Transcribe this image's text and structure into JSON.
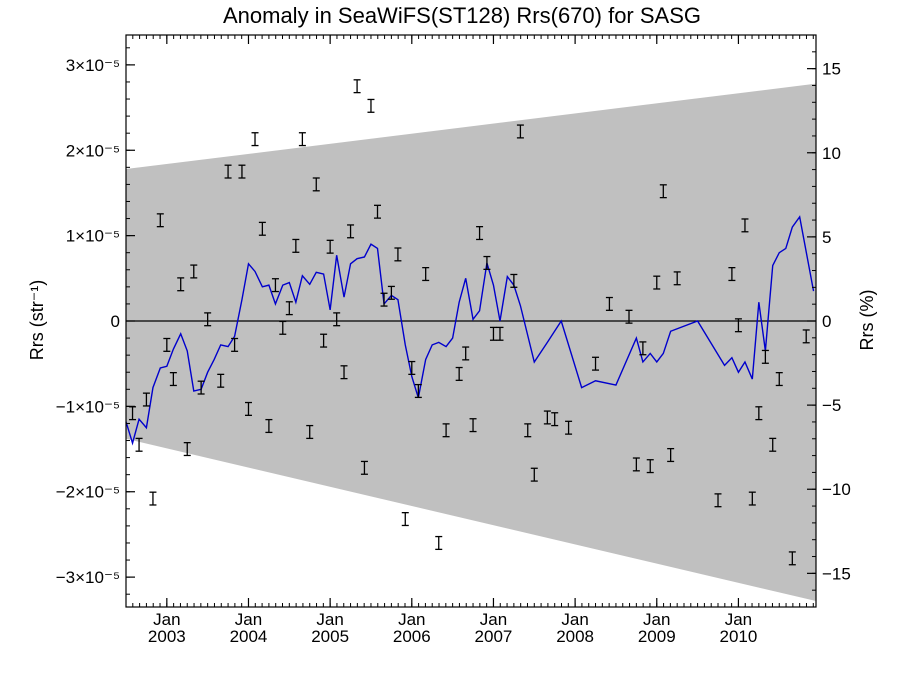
{
  "chart_data": {
    "type": "line",
    "title": "Anomaly in SeaWiFS(ST128) Rrs(670) for SASG",
    "ylabel_left": "Rrs (str⁻¹)",
    "ylabel_right": "Rrs (%)",
    "xlim": [
      2002.5,
      2010.95
    ],
    "ylim_left": [
      -3.35e-05,
      3.35e-05
    ],
    "ylim_right": [
      -17,
      17
    ],
    "y_left_ticks": [
      {
        "value": 3e-05,
        "label": "3×10⁻⁵"
      },
      {
        "value": 2e-05,
        "label": "2×10⁻⁵"
      },
      {
        "value": 1e-05,
        "label": "1×10⁻⁵"
      },
      {
        "value": 0,
        "label": "0"
      },
      {
        "value": -1e-05,
        "label": "−1×10⁻⁵"
      },
      {
        "value": -2e-05,
        "label": "−2×10⁻⁵"
      },
      {
        "value": -3e-05,
        "label": "−3×10⁻⁵"
      }
    ],
    "y_right_ticks": [
      {
        "value": 15,
        "label": "15"
      },
      {
        "value": 10,
        "label": "10"
      },
      {
        "value": 5,
        "label": "5"
      },
      {
        "value": 0,
        "label": "0"
      },
      {
        "value": -5,
        "label": "−5"
      },
      {
        "value": -10,
        "label": "−10"
      },
      {
        "value": -15,
        "label": "−15"
      }
    ],
    "x_ticks": [
      {
        "value": 2003.0,
        "month": "Jan",
        "year": "2003"
      },
      {
        "value": 2004.0,
        "month": "Jan",
        "year": "2004"
      },
      {
        "value": 2005.0,
        "month": "Jan",
        "year": "2005"
      },
      {
        "value": 2006.0,
        "month": "Jan",
        "year": "2006"
      },
      {
        "value": 2007.0,
        "month": "Jan",
        "year": "2007"
      },
      {
        "value": 2008.0,
        "month": "Jan",
        "year": "2008"
      },
      {
        "value": 2009.0,
        "month": "Jan",
        "year": "2009"
      },
      {
        "value": 2010.0,
        "month": "Jan",
        "year": "2010"
      }
    ],
    "envelope": {
      "color": "#c0c0c0",
      "upper": [
        [
          2002.5,
          1.78e-05
        ],
        [
          2010.95,
          2.78e-05
        ]
      ],
      "lower": [
        [
          2002.5,
          -1.38e-05
        ],
        [
          2010.95,
          -3.28e-05
        ]
      ]
    },
    "zero_line": 0,
    "line_series": {
      "color": "#0000cc",
      "points": [
        [
          2002.5,
          -1.18e-05
        ],
        [
          2002.58,
          -1.43e-05
        ],
        [
          2002.66,
          -1.15e-05
        ],
        [
          2002.75,
          -1.25e-05
        ],
        [
          2002.83,
          -7.8e-06
        ],
        [
          2002.92,
          -5.5e-06
        ],
        [
          2003.0,
          -5.3e-06
        ],
        [
          2003.08,
          -3.3e-06
        ],
        [
          2003.17,
          -1.5e-06
        ],
        [
          2003.25,
          -3.5e-06
        ],
        [
          2003.33,
          -8.2e-06
        ],
        [
          2003.42,
          -8e-06
        ],
        [
          2003.5,
          -6e-06
        ],
        [
          2003.58,
          -4.5e-06
        ],
        [
          2003.66,
          -2.8e-06
        ],
        [
          2003.75,
          -3e-06
        ],
        [
          2003.83,
          -1.8e-06
        ],
        [
          2003.92,
          2.5e-06
        ],
        [
          2004.0,
          6.7e-06
        ],
        [
          2004.08,
          5.8e-06
        ],
        [
          2004.17,
          4e-06
        ],
        [
          2004.25,
          4.2e-06
        ],
        [
          2004.33,
          2e-06
        ],
        [
          2004.42,
          4.2e-06
        ],
        [
          2004.5,
          4.5e-06
        ],
        [
          2004.58,
          2.2e-06
        ],
        [
          2004.66,
          5.3e-06
        ],
        [
          2004.75,
          4.3e-06
        ],
        [
          2004.83,
          5.7e-06
        ],
        [
          2004.92,
          5.5e-06
        ],
        [
          2005.0,
          1.3e-06
        ],
        [
          2005.08,
          7.7e-06
        ],
        [
          2005.17,
          2.8e-06
        ],
        [
          2005.25,
          6.7e-06
        ],
        [
          2005.33,
          7.3e-06
        ],
        [
          2005.42,
          7.5e-06
        ],
        [
          2005.5,
          9e-06
        ],
        [
          2005.58,
          8.5e-06
        ],
        [
          2005.66,
          2e-06
        ],
        [
          2005.75,
          3e-06
        ],
        [
          2005.83,
          2.5e-06
        ],
        [
          2005.92,
          -2.8e-06
        ],
        [
          2006.0,
          -6.5e-06
        ],
        [
          2006.08,
          -9e-06
        ],
        [
          2006.17,
          -4.5e-06
        ],
        [
          2006.25,
          -2.8e-06
        ],
        [
          2006.33,
          -2.5e-06
        ],
        [
          2006.42,
          -3e-06
        ],
        [
          2006.5,
          -2e-06
        ],
        [
          2006.58,
          2.2e-06
        ],
        [
          2006.66,
          5e-06
        ],
        [
          2006.75,
          2e-07
        ],
        [
          2006.83,
          1.2e-06
        ],
        [
          2006.92,
          6.8e-06
        ],
        [
          2007.0,
          4.2e-06
        ],
        [
          2007.08,
          0.0
        ],
        [
          2007.17,
          5.2e-06
        ],
        [
          2007.25,
          4.2e-06
        ],
        [
          2007.33,
          1.8e-06
        ],
        [
          2007.5,
          -4.8e-06
        ],
        [
          2007.66,
          -2.5e-06
        ],
        [
          2007.83,
          0.0
        ],
        [
          2008.08,
          -7.8e-06
        ],
        [
          2008.25,
          -7e-06
        ],
        [
          2008.5,
          -7.5e-06
        ],
        [
          2008.75,
          -2e-06
        ],
        [
          2008.83,
          -4.8e-06
        ],
        [
          2008.92,
          -3.8e-06
        ],
        [
          2009.0,
          -4.8e-06
        ],
        [
          2009.08,
          -3.8e-06
        ],
        [
          2009.17,
          -1.2e-06
        ],
        [
          2009.5,
          0.0
        ],
        [
          2009.83,
          -5.2e-06
        ],
        [
          2009.92,
          -4.3e-06
        ],
        [
          2010.0,
          -6e-06
        ],
        [
          2010.08,
          -4.8e-06
        ],
        [
          2010.17,
          -6.8e-06
        ],
        [
          2010.25,
          2.2e-06
        ],
        [
          2010.33,
          -3.5e-06
        ],
        [
          2010.42,
          6.5e-06
        ],
        [
          2010.5,
          8e-06
        ],
        [
          2010.58,
          8.5e-06
        ],
        [
          2010.66,
          1.1e-05
        ],
        [
          2010.75,
          1.22e-05
        ],
        [
          2010.92,
          3.5e-06
        ]
      ]
    },
    "error_bars": {
      "color": "#000000",
      "halfwidth": 7.5e-07,
      "points": [
        [
          2002.58,
          -1.08e-05
        ],
        [
          2002.66,
          -1.45e-05
        ],
        [
          2002.75,
          -9.2e-06
        ],
        [
          2002.83,
          -2.08e-05
        ],
        [
          2002.92,
          1.18e-05
        ],
        [
          2003.0,
          -2.8e-06
        ],
        [
          2003.08,
          -6.8e-06
        ],
        [
          2003.17,
          4.3e-06
        ],
        [
          2003.25,
          -1.5e-05
        ],
        [
          2003.33,
          5.8e-06
        ],
        [
          2003.42,
          -7.8e-06
        ],
        [
          2003.5,
          2e-07
        ],
        [
          2003.66,
          -7e-06
        ],
        [
          2003.75,
          1.75e-05
        ],
        [
          2003.83,
          -2.8e-06
        ],
        [
          2003.92,
          1.75e-05
        ],
        [
          2004.0,
          -1.03e-05
        ],
        [
          2004.08,
          2.13e-05
        ],
        [
          2004.17,
          1.08e-05
        ],
        [
          2004.25,
          -1.23e-05
        ],
        [
          2004.33,
          4.2e-06
        ],
        [
          2004.42,
          -8e-07
        ],
        [
          2004.5,
          1.5e-06
        ],
        [
          2004.58,
          8.8e-06
        ],
        [
          2004.66,
          2.13e-05
        ],
        [
          2004.75,
          -1.3e-05
        ],
        [
          2004.83,
          1.6e-05
        ],
        [
          2004.92,
          -2.3e-06
        ],
        [
          2005.0,
          8.7e-06
        ],
        [
          2005.08,
          2e-07
        ],
        [
          2005.17,
          -6e-06
        ],
        [
          2005.25,
          1.05e-05
        ],
        [
          2005.33,
          2.75e-05
        ],
        [
          2005.42,
          -1.72e-05
        ],
        [
          2005.5,
          2.52e-05
        ],
        [
          2005.58,
          1.28e-05
        ],
        [
          2005.66,
          2.5e-06
        ],
        [
          2005.75,
          3.3e-06
        ],
        [
          2005.83,
          7.8e-06
        ],
        [
          2005.92,
          -2.32e-05
        ],
        [
          2006.0,
          -5.5e-06
        ],
        [
          2006.08,
          -8.2e-06
        ],
        [
          2006.17,
          5.5e-06
        ],
        [
          2006.33,
          -2.6e-05
        ],
        [
          2006.42,
          -1.28e-05
        ],
        [
          2006.58,
          -6.2e-06
        ],
        [
          2006.66,
          -3.8e-06
        ],
        [
          2006.75,
          -1.22e-05
        ],
        [
          2006.83,
          1.03e-05
        ],
        [
          2006.92,
          6.8e-06
        ],
        [
          2007.0,
          -1.5e-06
        ],
        [
          2007.08,
          -1.5e-06
        ],
        [
          2007.25,
          4.7e-06
        ],
        [
          2007.33,
          2.22e-05
        ],
        [
          2007.42,
          -1.28e-05
        ],
        [
          2007.5,
          -1.8e-05
        ],
        [
          2007.66,
          -1.13e-05
        ],
        [
          2007.75,
          -1.15e-05
        ],
        [
          2007.92,
          -1.25e-05
        ],
        [
          2008.25,
          -5e-06
        ],
        [
          2008.42,
          2e-06
        ],
        [
          2008.66,
          5e-07
        ],
        [
          2008.75,
          -1.68e-05
        ],
        [
          2008.83,
          -3.2e-06
        ],
        [
          2008.92,
          -1.7e-05
        ],
        [
          2009.0,
          4.5e-06
        ],
        [
          2009.08,
          1.52e-05
        ],
        [
          2009.17,
          -1.57e-05
        ],
        [
          2009.25,
          5e-06
        ],
        [
          2009.75,
          -2.1e-05
        ],
        [
          2009.92,
          5.5e-06
        ],
        [
          2010.0,
          -5e-07
        ],
        [
          2010.08,
          1.12e-05
        ],
        [
          2010.17,
          -2.08e-05
        ],
        [
          2010.25,
          -1.08e-05
        ],
        [
          2010.33,
          -4.2e-06
        ],
        [
          2010.42,
          -1.45e-05
        ],
        [
          2010.5,
          -6.8e-06
        ],
        [
          2010.66,
          -2.78e-05
        ],
        [
          2010.83,
          -1.8e-06
        ]
      ]
    }
  }
}
